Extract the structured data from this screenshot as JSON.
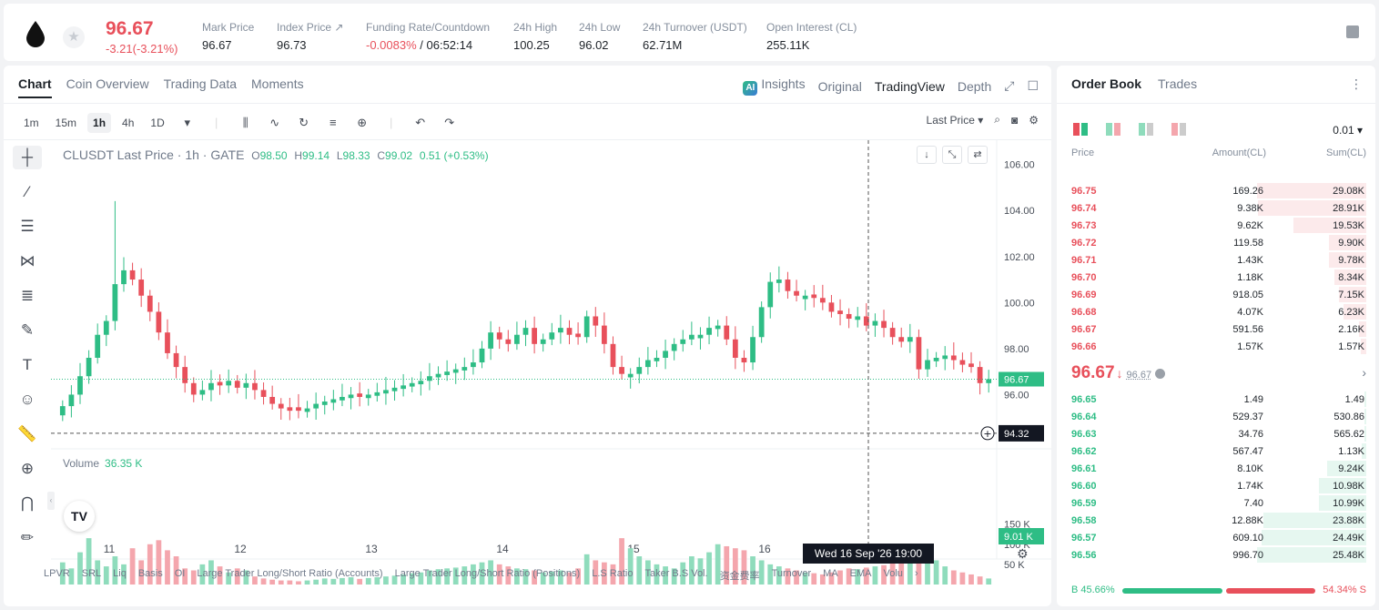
{
  "header": {
    "last_price": "96.67",
    "change": "-3.21(-3.21%)",
    "stats": [
      {
        "label": "Mark Price",
        "value": "96.67"
      },
      {
        "label": "Index Price ↗",
        "value": "96.73"
      },
      {
        "label": "Funding Rate/Countdown",
        "value_red": "-0.0083%",
        "value": " / 06:52:14"
      },
      {
        "label": "24h High",
        "value": "100.25"
      },
      {
        "label": "24h Low",
        "value": "96.02"
      },
      {
        "label": "24h Turnover (USDT)",
        "value": "62.71M"
      },
      {
        "label": "Open Interest (CL)",
        "value": "255.11K"
      }
    ]
  },
  "chart_tabs": [
    "Chart",
    "Coin Overview",
    "Trading Data",
    "Moments"
  ],
  "view_tabs": {
    "insights": "Insights",
    "original": "Original",
    "tradingview": "TradingView",
    "depth": "Depth"
  },
  "toolbar": {
    "timeframes": [
      "1m",
      "15m",
      "1h",
      "4h",
      "1D"
    ],
    "active_timeframe": "1h",
    "price_type": "Last Price"
  },
  "legend": {
    "title": "CLUSDT Last Price · 1h · GATE",
    "o_label": "O",
    "o": "98.50",
    "h_label": "H",
    "h": "99.14",
    "l_label": "L",
    "l": "98.33",
    "c_label": "C",
    "c": "99.02",
    "chg": "0.51 (+0.53%)",
    "volume_label": "Volume",
    "volume_value": "36.35 K"
  },
  "chart_data": {
    "type": "candlestick",
    "symbol": "CLUSDT",
    "interval": "1h",
    "y_axis_ticks": [
      "106.00",
      "104.00",
      "102.00",
      "100.00",
      "98.00",
      "96.00"
    ],
    "ylim": [
      94.0,
      106.5
    ],
    "x_axis_ticks": [
      "11",
      "12",
      "13",
      "14",
      "15",
      "16"
    ],
    "current_price_label": "96.67",
    "crosshair_price": "94.32",
    "crosshair_time": "Wed 16 Sep '26   19:00",
    "volume_axis_ticks": [
      "150 K",
      "100 K",
      "50 K"
    ],
    "volume_ylim": [
      0,
      165
    ],
    "volume_current": "9.01 K",
    "series_close": [
      95.5,
      96.0,
      96.8,
      97.6,
      98.6,
      99.2,
      100.8,
      101.4,
      101.0,
      100.3,
      99.6,
      98.7,
      97.8,
      97.2,
      96.5,
      96.0,
      96.2,
      96.5,
      96.4,
      96.6,
      96.3,
      96.5,
      96.2,
      95.9,
      95.6,
      95.4,
      95.3,
      95.3,
      95.4,
      95.6,
      95.7,
      95.8,
      95.9,
      96.0,
      95.9,
      96.0,
      96.1,
      96.2,
      96.3,
      96.4,
      96.5,
      96.6,
      96.8,
      96.9,
      97.0,
      97.1,
      97.2,
      97.4,
      98.0,
      98.7,
      98.4,
      98.2,
      98.6,
      98.9,
      98.2,
      98.4,
      98.7,
      98.9,
      98.6,
      98.5,
      99.4,
      99.0,
      98.2,
      97.2,
      96.9,
      96.9,
      97.2,
      97.5,
      97.6,
      97.9,
      98.2,
      98.4,
      98.6,
      98.6,
      98.9,
      99.0,
      98.4,
      97.6,
      97.4,
      98.5,
      99.8,
      100.9,
      101.0,
      100.5,
      100.3,
      100.3,
      100.2,
      100.0,
      99.6,
      99.5,
      99.3,
      99.4,
      99.0,
      99.2,
      98.9,
      98.5,
      98.3,
      98.5,
      97.1,
      97.5,
      97.6,
      97.7,
      97.5,
      97.3,
      97.2,
      96.5,
      96.67
    ],
    "series_volume": [
      55,
      40,
      80,
      115,
      60,
      45,
      70,
      50,
      90,
      60,
      100,
      110,
      85,
      70,
      40,
      35,
      50,
      60,
      45,
      30,
      40,
      35,
      20,
      15,
      12,
      10,
      10,
      8,
      10,
      12,
      15,
      14,
      16,
      18,
      14,
      16,
      18,
      20,
      22,
      25,
      28,
      30,
      35,
      38,
      40,
      42,
      45,
      50,
      55,
      60,
      50,
      45,
      40,
      38,
      35,
      30,
      32,
      35,
      30,
      40,
      75,
      60,
      55,
      50,
      115,
      90,
      70,
      60,
      50,
      45,
      40,
      55,
      70,
      65,
      80,
      100,
      95,
      90,
      85,
      70,
      60,
      50,
      45,
      40,
      35,
      30,
      28,
      25,
      30,
      35,
      40,
      38,
      42,
      45,
      48,
      55,
      60,
      75,
      95,
      80,
      60,
      45,
      35,
      30,
      25,
      20,
      15
    ],
    "series_up": [
      true,
      true,
      true,
      true,
      true,
      true,
      true,
      true,
      false,
      false,
      false,
      false,
      false,
      false,
      false,
      false,
      true,
      true,
      false,
      true,
      false,
      true,
      false,
      false,
      false,
      false,
      false,
      false,
      true,
      true,
      true,
      true,
      true,
      true,
      false,
      true,
      true,
      true,
      true,
      true,
      true,
      true,
      true,
      true,
      true,
      true,
      true,
      true,
      true,
      true,
      false,
      false,
      true,
      true,
      false,
      true,
      true,
      true,
      false,
      false,
      true,
      false,
      false,
      false,
      false,
      true,
      true,
      true,
      true,
      true,
      true,
      true,
      true,
      true,
      true,
      true,
      false,
      false,
      false,
      true,
      true,
      true,
      true,
      false,
      false,
      true,
      false,
      false,
      false,
      false,
      false,
      true,
      false,
      true,
      false,
      false,
      false,
      true,
      false,
      true,
      true,
      true,
      false,
      false,
      false,
      false,
      true
    ]
  },
  "indicators": [
    "LPVR",
    "SRL",
    "Liq",
    "Basis",
    "OI",
    "Large Trader Long/Short Ratio (Accounts)",
    "Large Trader Long/Short Ratio (Positions)",
    "L.S Ratio",
    "Taker B.S Vol.",
    "资金费率",
    "Turnover",
    "MA",
    "EMA",
    "Volu"
  ],
  "orderbook": {
    "tabs": [
      "Order Book",
      "Trades"
    ],
    "precision": "0.01",
    "headers": {
      "price": "Price",
      "amount": "Amount(CL)",
      "sum": "Sum(CL)"
    },
    "asks": [
      {
        "price": "96.75",
        "amount": "169.26",
        "sum": "29.08K",
        "depth": 1.0
      },
      {
        "price": "96.74",
        "amount": "9.38K",
        "sum": "28.91K",
        "depth": 0.99
      },
      {
        "price": "96.73",
        "amount": "9.62K",
        "sum": "19.53K",
        "depth": 0.67
      },
      {
        "price": "96.72",
        "amount": "119.58",
        "sum": "9.90K",
        "depth": 0.34
      },
      {
        "price": "96.71",
        "amount": "1.43K",
        "sum": "9.78K",
        "depth": 0.34
      },
      {
        "price": "96.70",
        "amount": "1.18K",
        "sum": "8.34K",
        "depth": 0.29
      },
      {
        "price": "96.69",
        "amount": "918.05",
        "sum": "7.15K",
        "depth": 0.25
      },
      {
        "price": "96.68",
        "amount": "4.07K",
        "sum": "6.23K",
        "depth": 0.21
      },
      {
        "price": "96.67",
        "amount": "591.56",
        "sum": "2.16K",
        "depth": 0.07
      },
      {
        "price": "96.66",
        "amount": "1.57K",
        "sum": "1.57K",
        "depth": 0.05
      }
    ],
    "last": "96.67",
    "last_arrow": "↓",
    "mark": "96.67",
    "bids": [
      {
        "price": "96.65",
        "amount": "1.49",
        "sum": "1.49",
        "depth": 0.0
      },
      {
        "price": "96.64",
        "amount": "529.37",
        "sum": "530.86",
        "depth": 0.02
      },
      {
        "price": "96.63",
        "amount": "34.76",
        "sum": "565.62",
        "depth": 0.02
      },
      {
        "price": "96.62",
        "amount": "567.47",
        "sum": "1.13K",
        "depth": 0.04
      },
      {
        "price": "96.61",
        "amount": "8.10K",
        "sum": "9.24K",
        "depth": 0.36
      },
      {
        "price": "96.60",
        "amount": "1.74K",
        "sum": "10.98K",
        "depth": 0.43
      },
      {
        "price": "96.59",
        "amount": "7.40",
        "sum": "10.99K",
        "depth": 0.43
      },
      {
        "price": "96.58",
        "amount": "12.88K",
        "sum": "23.88K",
        "depth": 0.94
      },
      {
        "price": "96.57",
        "amount": "609.10",
        "sum": "24.49K",
        "depth": 0.96
      },
      {
        "price": "96.56",
        "amount": "996.70",
        "sum": "25.48K",
        "depth": 1.0
      }
    ],
    "buy_ratio": "B 45.66%",
    "sell_ratio": "54.34% S"
  },
  "colors": {
    "up": "#2ebd85",
    "down": "#e8505b",
    "up_vol": "#8fdcbc",
    "down_vol": "#f4a6ad"
  }
}
